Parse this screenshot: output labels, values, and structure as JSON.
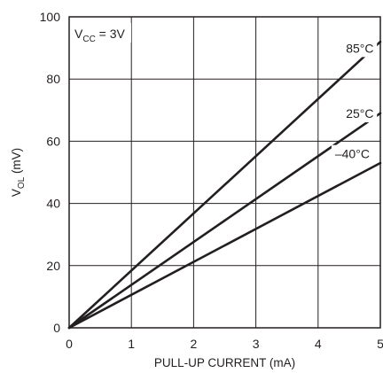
{
  "chart_data": {
    "type": "line",
    "title": "",
    "xlabel": "PULL-UP CURRENT (mA)",
    "ylabel": {
      "main": "V",
      "sub": "OL",
      "unit": " (mV)"
    },
    "xlim": [
      0,
      5
    ],
    "ylim": [
      0,
      100
    ],
    "x_ticks": [
      0,
      1,
      2,
      3,
      4,
      5
    ],
    "y_ticks": [
      0,
      20,
      40,
      60,
      80,
      100
    ],
    "grid": true,
    "legend": "none",
    "annotation": {
      "main": "V",
      "sub": "CC",
      "rest": " = 3V"
    },
    "series": [
      {
        "name": "85°C",
        "x": [
          0,
          5
        ],
        "y": [
          0,
          92
        ]
      },
      {
        "name": "25°C",
        "x": [
          0,
          5
        ],
        "y": [
          0,
          69
        ]
      },
      {
        "name": "–40°C",
        "x": [
          0,
          5
        ],
        "y": [
          0,
          53
        ]
      }
    ],
    "series_label_positions": [
      {
        "x": 4.67,
        "y": 88.5
      },
      {
        "x": 4.67,
        "y": 67.5
      },
      {
        "x": 4.55,
        "y": 54.5
      }
    ]
  }
}
